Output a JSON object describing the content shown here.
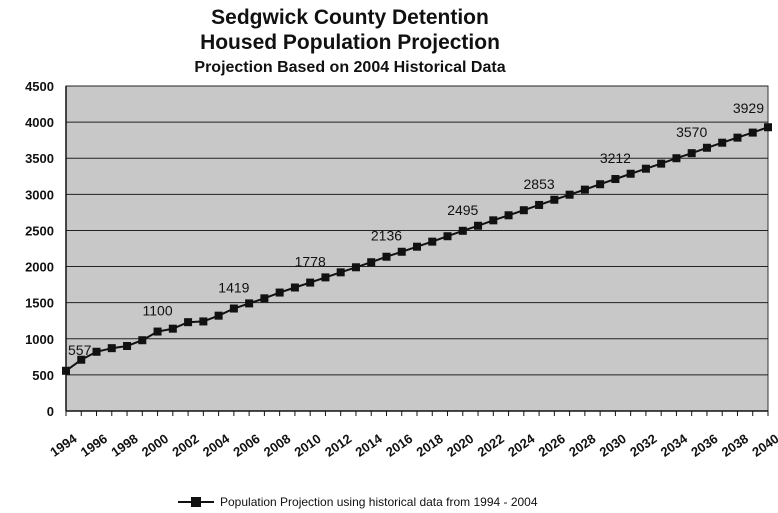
{
  "title": "Sedgwick County Detention",
  "title_line2": "Housed Population Projection",
  "subtitle": "Projection Based on 2004 Historical Data",
  "legend": {
    "label": "Population Projection using historical data from 1994 - 2004"
  },
  "colors": {
    "plot_bg": "#c8c8c8",
    "line": "#111111",
    "grid": "#222222"
  },
  "chart_data": {
    "type": "line",
    "title": "Sedgwick County Detention Housed Population Projection",
    "subtitle": "Projection Based on 2004 Historical Data",
    "xlabel": "",
    "ylabel": "",
    "ylim": [
      0,
      4500
    ],
    "yticks": [
      0,
      500,
      1000,
      1500,
      2000,
      2500,
      3000,
      3500,
      4000,
      4500
    ],
    "xlim": [
      1994,
      2040
    ],
    "xtick_labels": [
      "1994",
      "1996",
      "1998",
      "2000",
      "2002",
      "2004",
      "2006",
      "2008",
      "2010",
      "2012",
      "2014",
      "2016",
      "2018",
      "2020",
      "2022",
      "2024",
      "2026",
      "2028",
      "2030",
      "2032",
      "2034",
      "2036",
      "2038",
      "2040"
    ],
    "grid": true,
    "legend_position": "bottom",
    "series": [
      {
        "name": "Population Projection using historical data from 1994 - 2004",
        "marker": "square",
        "x": [
          1994,
          1995,
          1996,
          1997,
          1998,
          1999,
          2000,
          2001,
          2002,
          2003,
          2004,
          2005,
          2006,
          2007,
          2008,
          2009,
          2010,
          2011,
          2012,
          2013,
          2014,
          2015,
          2016,
          2017,
          2018,
          2019,
          2020,
          2021,
          2022,
          2023,
          2024,
          2025,
          2026,
          2027,
          2028,
          2029,
          2030,
          2031,
          2032,
          2033,
          2034,
          2035,
          2036,
          2037,
          2038,
          2039,
          2040
        ],
        "y": [
          557,
          710,
          820,
          870,
          900,
          980,
          1100,
          1140,
          1230,
          1240,
          1320,
          1419,
          1490,
          1560,
          1640,
          1710,
          1778,
          1850,
          1920,
          1990,
          2060,
          2136,
          2205,
          2275,
          2345,
          2420,
          2495,
          2565,
          2640,
          2710,
          2780,
          2853,
          2925,
          2995,
          3065,
          3140,
          3212,
          3285,
          3355,
          3425,
          3500,
          3570,
          3645,
          3715,
          3785,
          3855,
          3929
        ]
      }
    ],
    "data_labels": [
      {
        "x": 1994,
        "label": "557"
      },
      {
        "x": 2000,
        "label": "1100"
      },
      {
        "x": 2005,
        "label": "1419"
      },
      {
        "x": 2010,
        "label": "1778"
      },
      {
        "x": 2015,
        "label": "2136"
      },
      {
        "x": 2020,
        "label": "2495"
      },
      {
        "x": 2025,
        "label": "2853"
      },
      {
        "x": 2030,
        "label": "3212"
      },
      {
        "x": 2035,
        "label": "3570"
      },
      {
        "x": 2040,
        "label": "3929"
      }
    ]
  }
}
